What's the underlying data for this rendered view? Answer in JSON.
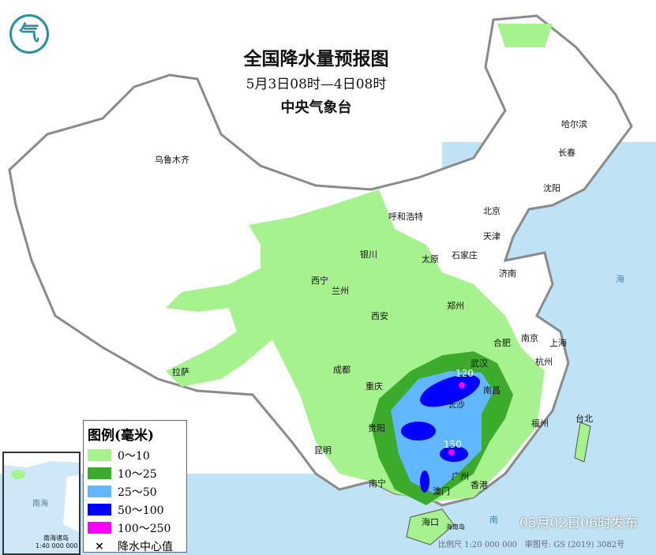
{
  "header": {
    "title": "全国降水量预报图",
    "period": "5月3日08时—4日08时",
    "issuer": "中央气象台"
  },
  "logo": {
    "name": "cma-logo",
    "text": "气"
  },
  "colors": {
    "sea": "#bfe3f5",
    "land": "#ffffff",
    "border": "#8a8a8a",
    "r0_10": "#a6f28f",
    "r10_25": "#3caa2a",
    "r25_50": "#61b8ff",
    "r50_100": "#0000fe",
    "r100_250": "#fa00fa"
  },
  "legend": {
    "title": "图例(毫米)",
    "items": [
      {
        "label": "0～10",
        "color": "#a6f28f"
      },
      {
        "label": "10～25",
        "color": "#3caa2a"
      },
      {
        "label": "25～50",
        "color": "#61b8ff"
      },
      {
        "label": "50～100",
        "color": "#0000fe"
      },
      {
        "label": "100～250",
        "color": "#fa00fa"
      }
    ],
    "marker_label": "降水中心值",
    "marker_symbol": "×"
  },
  "cities": [
    "乌鲁木齐",
    "呼和浩特",
    "北京",
    "天津",
    "石家庄",
    "太原",
    "银川",
    "西宁",
    "兰州",
    "济南",
    "郑州",
    "西安",
    "合肥",
    "南京",
    "上海",
    "杭州",
    "武汉",
    "成都",
    "重庆",
    "长沙",
    "南昌",
    "福州",
    "台北",
    "贵阳",
    "昆明",
    "南宁",
    "广州",
    "香港",
    "澳门",
    "海口",
    "拉萨",
    "哈尔滨",
    "长春",
    "沈阳"
  ],
  "centers": [
    "120",
    "150"
  ],
  "island_label": "海南岛",
  "sea_labels": [
    "南",
    "海"
  ],
  "inset": {
    "sea_label": "南海",
    "islands_label": "南海诸岛",
    "scale": "1:40 000 000"
  },
  "footer": {
    "published": "05月02日06时发布",
    "scale": "比例尺 1:20 000 000",
    "map_number": "审图号: GS (2019) 3082号"
  }
}
